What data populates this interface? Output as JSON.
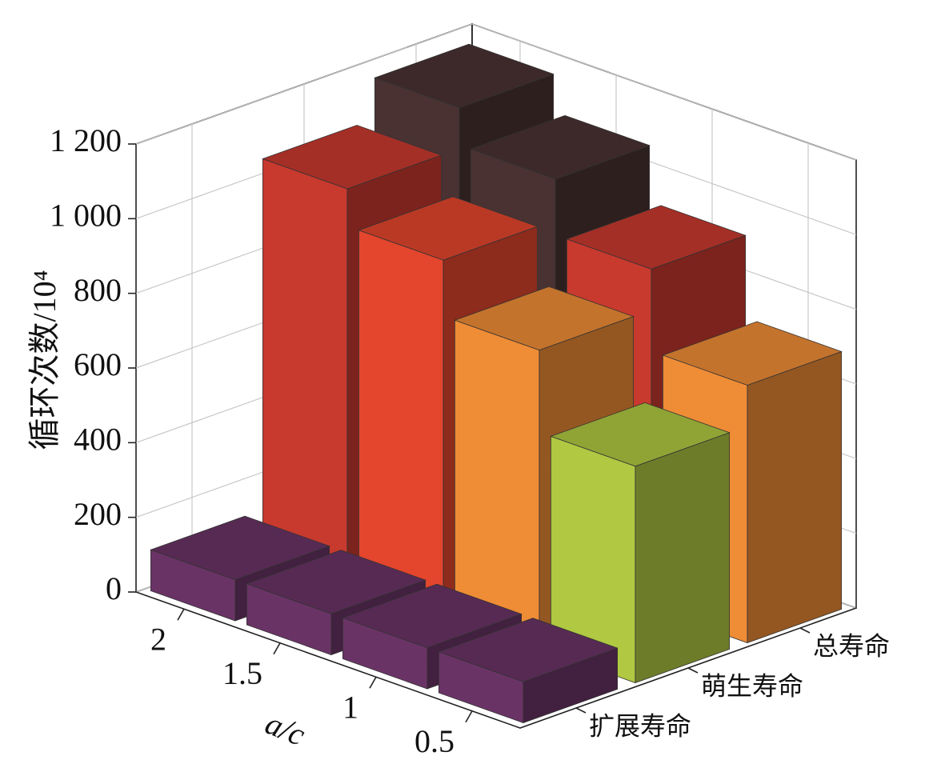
{
  "chart_data": {
    "type": "bar3d",
    "y_label": "循环次数/10⁴",
    "x_label": "a/c",
    "categories": [
      "2",
      "1.5",
      "1",
      "0.5"
    ],
    "series": [
      {
        "name": "扩展寿命",
        "values": [
          110,
          110,
          110,
          110
        ],
        "colors": [
          "#6a3366",
          "#6a3366",
          "#6a3366",
          "#6a3366"
        ]
      },
      {
        "name": "萌生寿命",
        "values": [
          1050,
          950,
          800,
          580
        ],
        "colors": [
          "#c8392e",
          "#e3452d",
          "#ef8c36",
          "#b0c842"
        ]
      },
      {
        "name": "总寿命",
        "values": [
          1160,
          1060,
          910,
          690
        ],
        "colors": [
          "#4a3232",
          "#4a3232",
          "#c8392e",
          "#ef8c36"
        ]
      }
    ],
    "ylim": [
      0,
      1200
    ],
    "yticks": [
      0,
      200,
      400,
      600,
      800,
      {
        "value": 1000,
        "label": "1 000"
      },
      {
        "value": 1200,
        "label": "1 200"
      }
    ],
    "grid": true
  }
}
